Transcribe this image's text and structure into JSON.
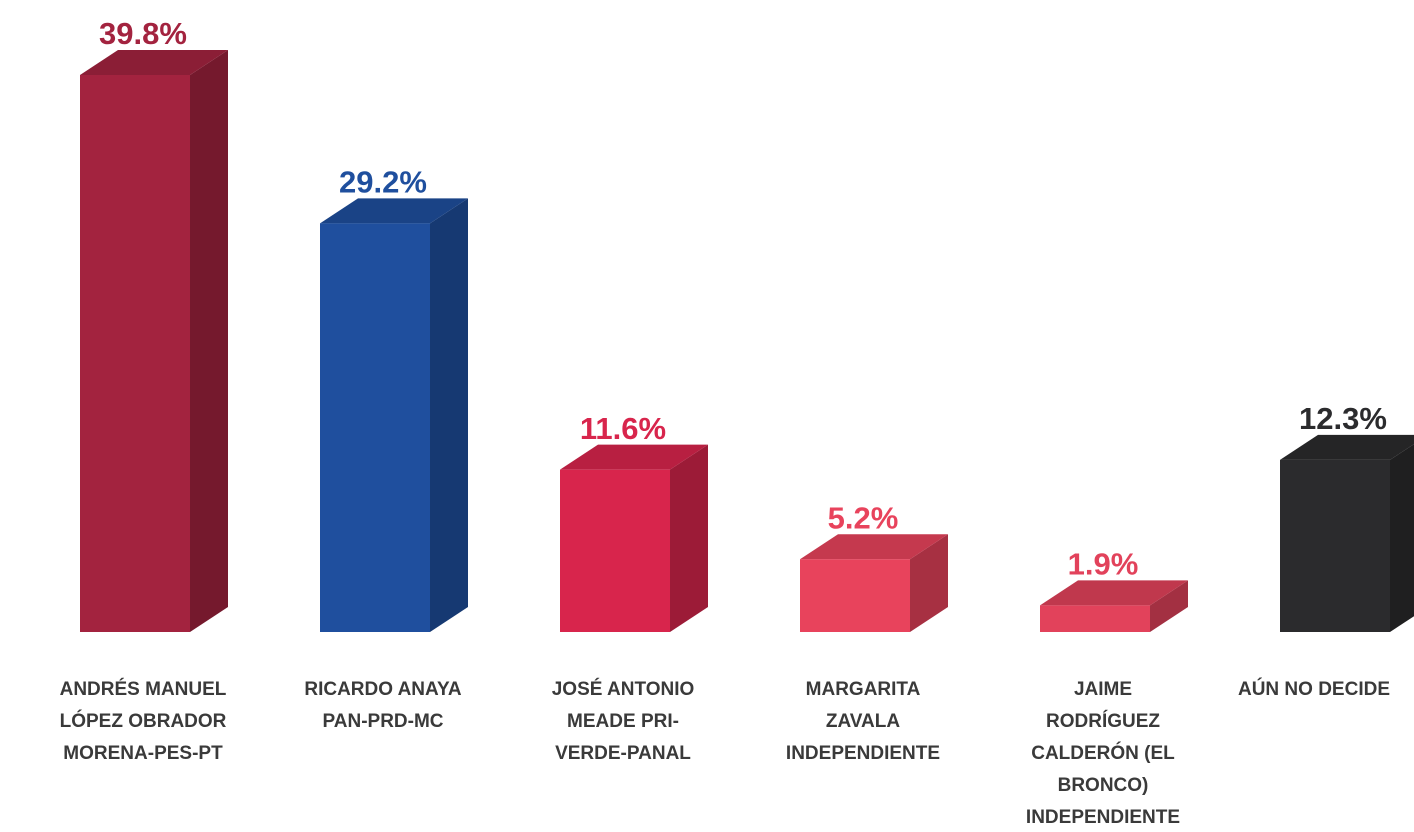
{
  "chart_data": {
    "type": "bar3d",
    "categories": [
      [
        "ANDRÉS MANUEL",
        "LÓPEZ OBRADOR",
        "MORENA-PES-PT"
      ],
      [
        "RICARDO ANAYA",
        "PAN-PRD-MC"
      ],
      [
        "JOSÉ ANTONIO",
        "MEADE PRI-",
        "VERDE-PANAL"
      ],
      [
        "MARGARITA",
        "ZAVALA",
        "INDEPENDIENTE"
      ],
      [
        "JAIME",
        "RODRÍGUEZ",
        "CALDERÓN (EL",
        "BRONCO)",
        "INDEPENDIENTE"
      ],
      [
        "AÚN NO DECIDE"
      ]
    ],
    "values": [
      39.8,
      29.2,
      11.6,
      5.2,
      1.9,
      12.3
    ],
    "value_labels": [
      "39.8%",
      "29.2%",
      "11.6%",
      "5.2%",
      "1.9%",
      "12.3%"
    ],
    "colors": [
      "#a3233f",
      "#1f4f9e",
      "#d8254c",
      "#e8435c",
      "#e2425b",
      "#2b2b2d"
    ]
  }
}
